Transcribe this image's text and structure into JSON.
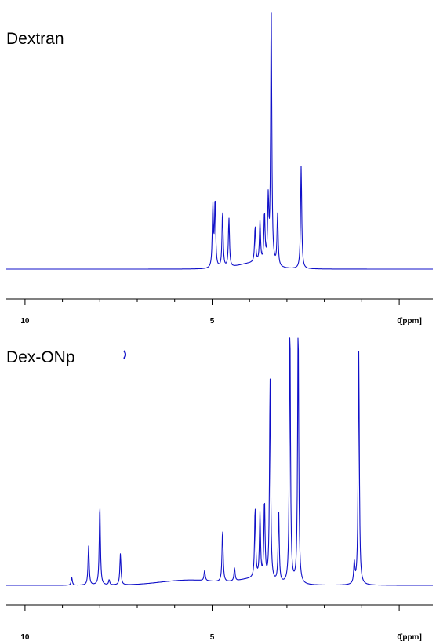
{
  "colors": {
    "spectrum": "#1010c8",
    "axis": "#000000"
  },
  "chart_data": [
    {
      "type": "line",
      "title": "Dextran",
      "xlabel": "[ppm]",
      "xlim": [
        10.5,
        -0.9
      ],
      "ylim": [
        0,
        100
      ],
      "x_ticks": [
        10,
        5,
        0
      ],
      "x_tick_labels": [
        "10",
        "5",
        "0"
      ],
      "grid": false,
      "baseline": 0,
      "peaks": [
        {
          "ppm": 4.98,
          "height": 24
        },
        {
          "ppm": 4.92,
          "height": 26
        },
        {
          "ppm": 4.72,
          "height": 22
        },
        {
          "ppm": 4.55,
          "height": 19
        },
        {
          "ppm": 3.85,
          "height": 14
        },
        {
          "ppm": 3.72,
          "height": 16
        },
        {
          "ppm": 3.6,
          "height": 19
        },
        {
          "ppm": 3.5,
          "height": 24
        },
        {
          "ppm": 3.42,
          "height": 100
        },
        {
          "ppm": 3.25,
          "height": 20
        },
        {
          "ppm": 2.62,
          "height": 40
        }
      ]
    },
    {
      "type": "line",
      "title": "Dex-ONp",
      "xlabel": "[ppm]",
      "xlim": [
        10.5,
        -0.9
      ],
      "ylim": [
        0,
        100
      ],
      "x_ticks": [
        10,
        5,
        0
      ],
      "x_tick_labels": [
        "10",
        "5",
        "0"
      ],
      "grid": false,
      "baseline": 0,
      "peaks": [
        {
          "ppm": 8.75,
          "height": 3
        },
        {
          "ppm": 8.3,
          "height": 15
        },
        {
          "ppm": 8.0,
          "height": 31
        },
        {
          "ppm": 7.75,
          "height": 2
        },
        {
          "ppm": 7.45,
          "height": 12
        },
        {
          "ppm": 5.2,
          "height": 4
        },
        {
          "ppm": 4.72,
          "height": 20
        },
        {
          "ppm": 4.4,
          "height": 5
        },
        {
          "ppm": 3.85,
          "height": 27
        },
        {
          "ppm": 3.72,
          "height": 25
        },
        {
          "ppm": 3.6,
          "height": 30
        },
        {
          "ppm": 3.45,
          "height": 78
        },
        {
          "ppm": 3.22,
          "height": 27
        },
        {
          "ppm": 2.92,
          "height": 100
        },
        {
          "ppm": 2.7,
          "height": 100
        },
        {
          "ppm": 1.2,
          "height": 8
        },
        {
          "ppm": 1.08,
          "height": 90
        }
      ]
    }
  ]
}
